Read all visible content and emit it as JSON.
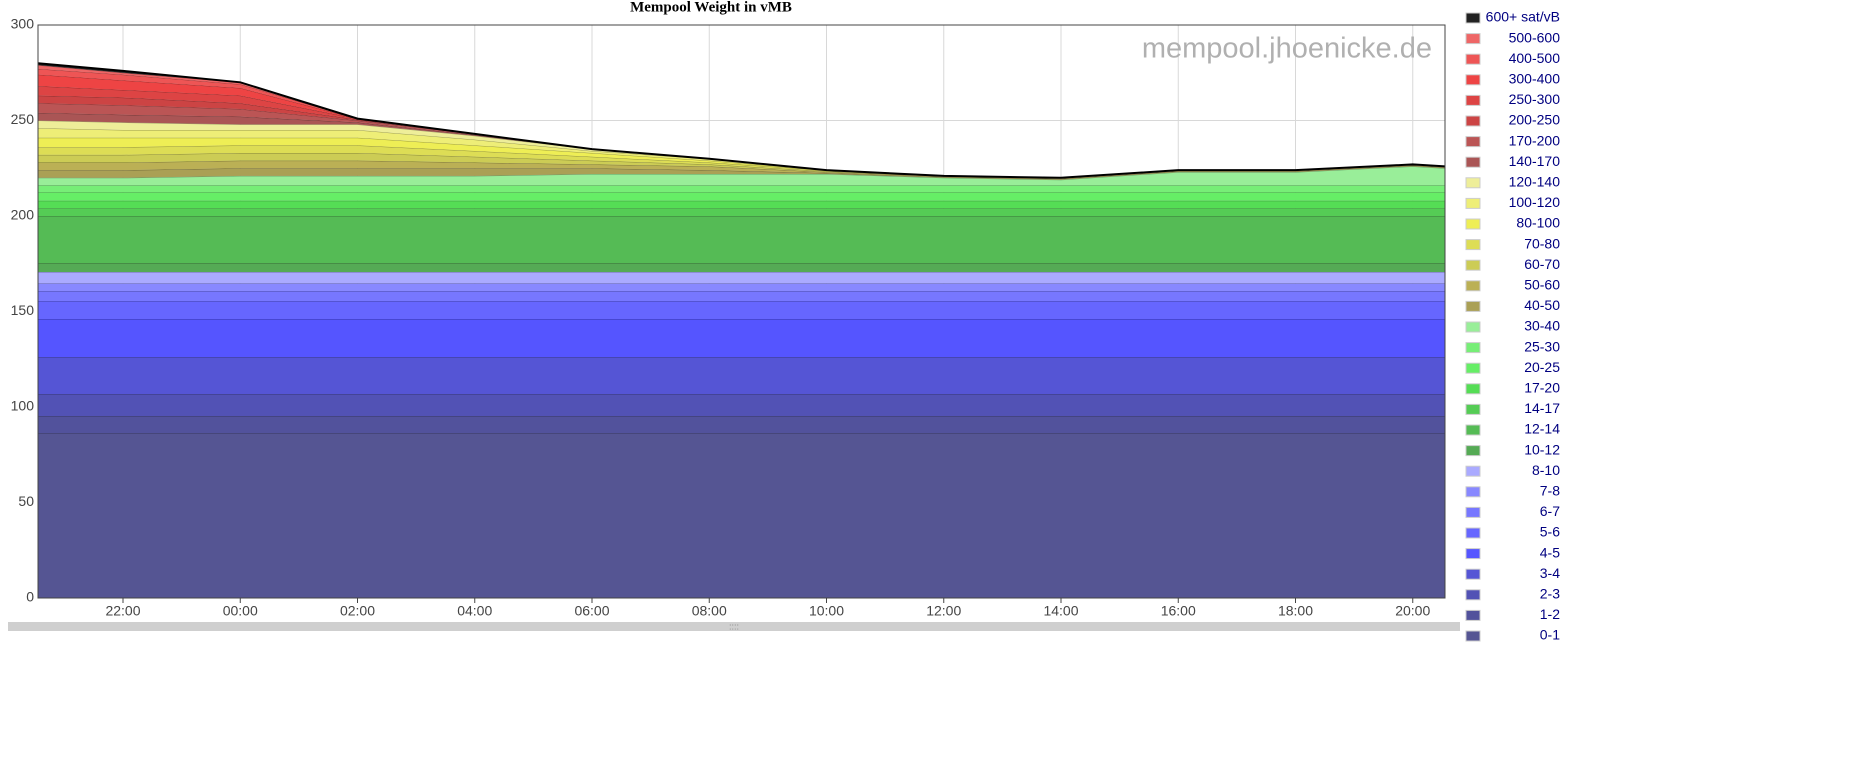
{
  "chart_data": {
    "type": "stacked-area",
    "title": "Mempool Weight in vMB",
    "watermark": "mempool.jhoenicke.de",
    "x": [
      20.55,
      22,
      24,
      26,
      28,
      30,
      32,
      34,
      36,
      38,
      40,
      42,
      44,
      44.55
    ],
    "xlim": [
      20.55,
      44.55
    ],
    "xticks": [
      {
        "value": 22,
        "label": "22:00"
      },
      {
        "value": 24,
        "label": "00:00"
      },
      {
        "value": 26,
        "label": "02:00"
      },
      {
        "value": 28,
        "label": "04:00"
      },
      {
        "value": 30,
        "label": "06:00"
      },
      {
        "value": 32,
        "label": "08:00"
      },
      {
        "value": 34,
        "label": "10:00"
      },
      {
        "value": 36,
        "label": "12:00"
      },
      {
        "value": 38,
        "label": "14:00"
      },
      {
        "value": 40,
        "label": "16:00"
      },
      {
        "value": 42,
        "label": "18:00"
      },
      {
        "value": 44,
        "label": "20:00"
      }
    ],
    "ylim": [
      0,
      300
    ],
    "yticks": [
      0,
      50,
      100,
      150,
      200,
      250,
      300
    ],
    "grid": true,
    "legend": "right",
    "series": [
      {
        "name": "0-1",
        "color": "#555593",
        "values": [
          86.4,
          86.4,
          86.4,
          86.4,
          86.4,
          86.4,
          86.4,
          86.4,
          86.4,
          86.4,
          86.4,
          86.4,
          86.4,
          86.4
        ]
      },
      {
        "name": "1-2",
        "color": "#52529c",
        "values": [
          8.9,
          8.9,
          8.9,
          8.9,
          8.9,
          8.9,
          8.9,
          8.9,
          8.9,
          8.9,
          8.9,
          8.9,
          8.9,
          8.9
        ]
      },
      {
        "name": "2-3",
        "color": "#5252b5",
        "values": [
          11.5,
          11.5,
          11.5,
          11.5,
          11.5,
          11.5,
          11.5,
          11.5,
          11.5,
          11.5,
          11.5,
          11.5,
          11.5,
          11.5
        ]
      },
      {
        "name": "3-4",
        "color": "#5555d5",
        "values": [
          19.4,
          19.4,
          19.4,
          19.4,
          19.4,
          19.4,
          19.4,
          19.4,
          19.4,
          19.4,
          19.4,
          19.4,
          19.4,
          19.4
        ]
      },
      {
        "name": "4-5",
        "color": "#5555ff",
        "values": [
          19.9,
          19.9,
          19.9,
          19.9,
          19.9,
          19.9,
          19.9,
          19.9,
          19.9,
          19.9,
          19.9,
          19.9,
          19.9,
          19.9
        ]
      },
      {
        "name": "5-6",
        "color": "#6666ff",
        "values": [
          9.4,
          9.4,
          9.4,
          9.4,
          9.4,
          9.4,
          9.4,
          9.4,
          9.4,
          9.4,
          9.4,
          9.4,
          9.4,
          9.4
        ]
      },
      {
        "name": "6-7",
        "color": "#7777ff",
        "values": [
          5.2,
          5.2,
          5.2,
          5.2,
          5.2,
          5.2,
          5.2,
          5.2,
          5.2,
          5.2,
          5.2,
          5.2,
          5.2,
          5.2
        ]
      },
      {
        "name": "7-8",
        "color": "#8888ff",
        "values": [
          4,
          4,
          4,
          4,
          4,
          4,
          4,
          4,
          4,
          4,
          4,
          4,
          4,
          4
        ]
      },
      {
        "name": "8-10",
        "color": "#aaaaff",
        "values": [
          6,
          6,
          6,
          6,
          6,
          6,
          6,
          6,
          6,
          6,
          6,
          6,
          6,
          6
        ]
      },
      {
        "name": "10-12",
        "color": "#55aa55",
        "values": [
          4.7,
          4.7,
          4.7,
          4.7,
          4.7,
          4.7,
          4.7,
          4.7,
          4.7,
          4.7,
          4.7,
          4.7,
          4.7,
          4.7
        ]
      },
      {
        "name": "12-14",
        "color": "#55bb55",
        "values": [
          24.6,
          24.6,
          24.6,
          24.6,
          24.6,
          24.6,
          24.6,
          24.6,
          24.6,
          24.6,
          24.6,
          24.6,
          24.6,
          24.6
        ]
      },
      {
        "name": "14-17",
        "color": "#55cc55",
        "values": [
          4,
          4,
          4,
          4,
          4,
          4,
          4,
          4,
          4,
          4,
          4,
          4,
          4,
          4
        ]
      },
      {
        "name": "17-20",
        "color": "#55dd55",
        "values": [
          4,
          4,
          4,
          4,
          4,
          4,
          4,
          4,
          4,
          4,
          4,
          4,
          4,
          4
        ]
      },
      {
        "name": "20-25",
        "color": "#66ee66",
        "values": [
          4.5,
          4.5,
          4.5,
          4.5,
          4.5,
          4.5,
          4.5,
          4.5,
          4.5,
          4.5,
          4.5,
          4.5,
          4.5,
          4.5
        ]
      },
      {
        "name": "25-30",
        "color": "#77ee77",
        "values": [
          3.5,
          3.5,
          3.5,
          3.5,
          3.5,
          3.5,
          3.5,
          3.5,
          3.5,
          3.5,
          3.5,
          3.5,
          3.5,
          3.5
        ]
      },
      {
        "name": "30-40",
        "color": "#99ee99",
        "values": [
          4,
          4,
          5,
          5,
          5,
          6,
          6,
          6,
          4,
          3,
          7,
          7,
          10,
          9
        ]
      },
      {
        "name": "40-50",
        "color": "#aaa055",
        "values": [
          4,
          4,
          4,
          4,
          4,
          3,
          2,
          0.5,
          0.5,
          0.5,
          0.5,
          0.5,
          0.5,
          0.5
        ]
      },
      {
        "name": "50-60",
        "color": "#bbb055",
        "values": [
          4,
          4,
          4,
          4,
          3,
          2,
          2,
          0.5,
          0.5,
          0.5,
          0.5,
          0.5,
          0.5,
          0.5
        ]
      },
      {
        "name": "60-70",
        "color": "#cccc55",
        "values": [
          4,
          4,
          4,
          4,
          3,
          2,
          1,
          0.5,
          0,
          0,
          0,
          0,
          0,
          0
        ]
      },
      {
        "name": "70-80",
        "color": "#dddd55",
        "values": [
          4,
          4,
          4,
          4,
          3,
          2,
          1,
          0.5,
          0,
          0,
          0,
          0,
          0,
          0
        ]
      },
      {
        "name": "80-100",
        "color": "#eeee55",
        "values": [
          5,
          5,
          4,
          4,
          3,
          2,
          1,
          0,
          0,
          0,
          0,
          0,
          0,
          0
        ]
      },
      {
        "name": "100-120",
        "color": "#eeee77",
        "values": [
          5,
          4,
          4,
          4,
          3,
          1,
          1,
          0,
          0,
          0,
          0,
          0,
          0,
          0
        ]
      },
      {
        "name": "120-140",
        "color": "#eeee99",
        "values": [
          4,
          4,
          3,
          3,
          2,
          1,
          0,
          0,
          0,
          0,
          0,
          0,
          0,
          0
        ]
      },
      {
        "name": "140-170",
        "color": "#aa5555",
        "values": [
          4,
          4,
          4,
          1,
          0.5,
          0,
          0,
          0,
          0,
          0,
          0,
          0,
          0,
          0
        ]
      },
      {
        "name": "170-200",
        "color": "#bb5555",
        "values": [
          5,
          5,
          4,
          1,
          0.5,
          0,
          0,
          0,
          0,
          0,
          0,
          0,
          0,
          0
        ]
      },
      {
        "name": "200-250",
        "color": "#cc4444",
        "values": [
          4,
          4,
          3,
          0.5,
          0,
          0,
          0,
          0,
          0,
          0,
          0,
          0,
          0,
          0
        ]
      },
      {
        "name": "250-300",
        "color": "#dd4444",
        "values": [
          5,
          4,
          4,
          0.5,
          0,
          0,
          0,
          0,
          0,
          0,
          0,
          0,
          0,
          0
        ]
      },
      {
        "name": "300-400",
        "color": "#ee4444",
        "values": [
          6,
          5,
          4,
          0,
          0,
          0,
          0,
          0,
          0,
          0,
          0,
          0,
          0,
          0
        ]
      },
      {
        "name": "400-500",
        "color": "#ee5555",
        "values": [
          3,
          3,
          2,
          0,
          0,
          0,
          0,
          0,
          0,
          0,
          0,
          0,
          0,
          0
        ]
      },
      {
        "name": "500-600",
        "color": "#ee6666",
        "values": [
          2,
          1,
          1,
          0,
          0,
          0,
          0,
          0,
          0,
          0,
          0,
          0,
          0,
          0
        ]
      },
      {
        "name": "600+ sat/vB",
        "color": "#222222",
        "values": [
          1,
          1,
          0,
          0,
          0,
          0,
          0,
          0,
          0,
          0,
          0,
          0,
          0,
          0
        ]
      }
    ]
  }
}
